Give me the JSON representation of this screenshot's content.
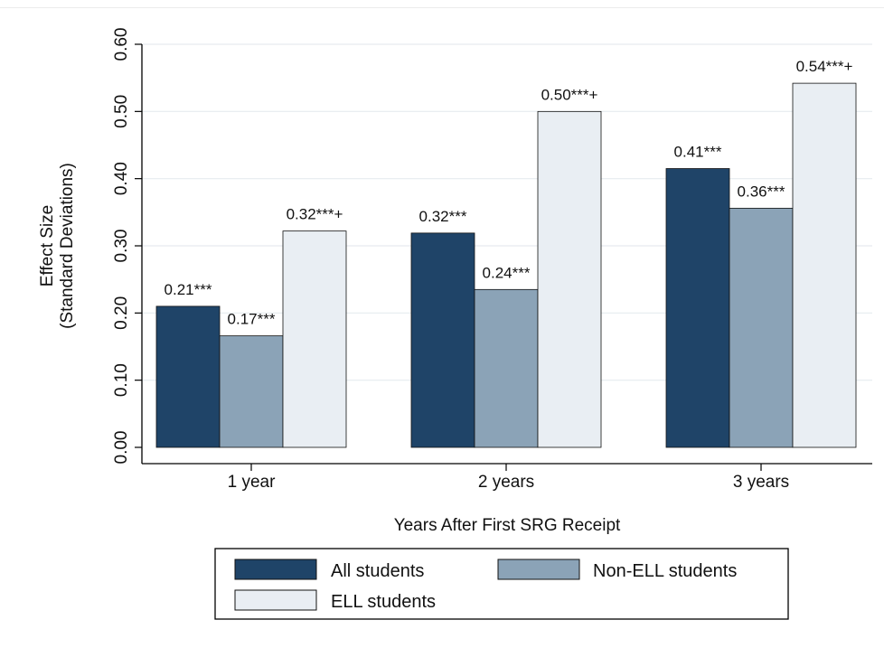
{
  "chart_data": {
    "type": "bar",
    "title": "",
    "xlabel": "Years After First SRG Receipt",
    "ylabel_lines": [
      "Effect Size",
      "(Standard Deviations)"
    ],
    "ylim": [
      0,
      0.6
    ],
    "yticks": [
      "0.00",
      "0.10",
      "0.20",
      "0.30",
      "0.40",
      "0.50",
      "0.60"
    ],
    "categories": [
      "1 year",
      "2 years",
      "3 years"
    ],
    "grid": true,
    "legend_position": "bottom",
    "series": [
      {
        "name": "All students",
        "color": "#1f4468",
        "values": [
          0.21,
          0.319,
          0.415
        ],
        "labels": [
          "0.21***",
          "0.32***",
          "0.41***"
        ]
      },
      {
        "name": "Non-ELL students",
        "color": "#8ba3b7",
        "values": [
          0.166,
          0.235,
          0.356
        ],
        "labels": [
          "0.17***",
          "0.24***",
          "0.36***"
        ]
      },
      {
        "name": "ELL students",
        "color": "#e9eef3",
        "values": [
          0.322,
          0.5,
          0.542
        ],
        "labels": [
          "0.32***+",
          "0.50***+",
          "0.54***+"
        ]
      }
    ]
  }
}
